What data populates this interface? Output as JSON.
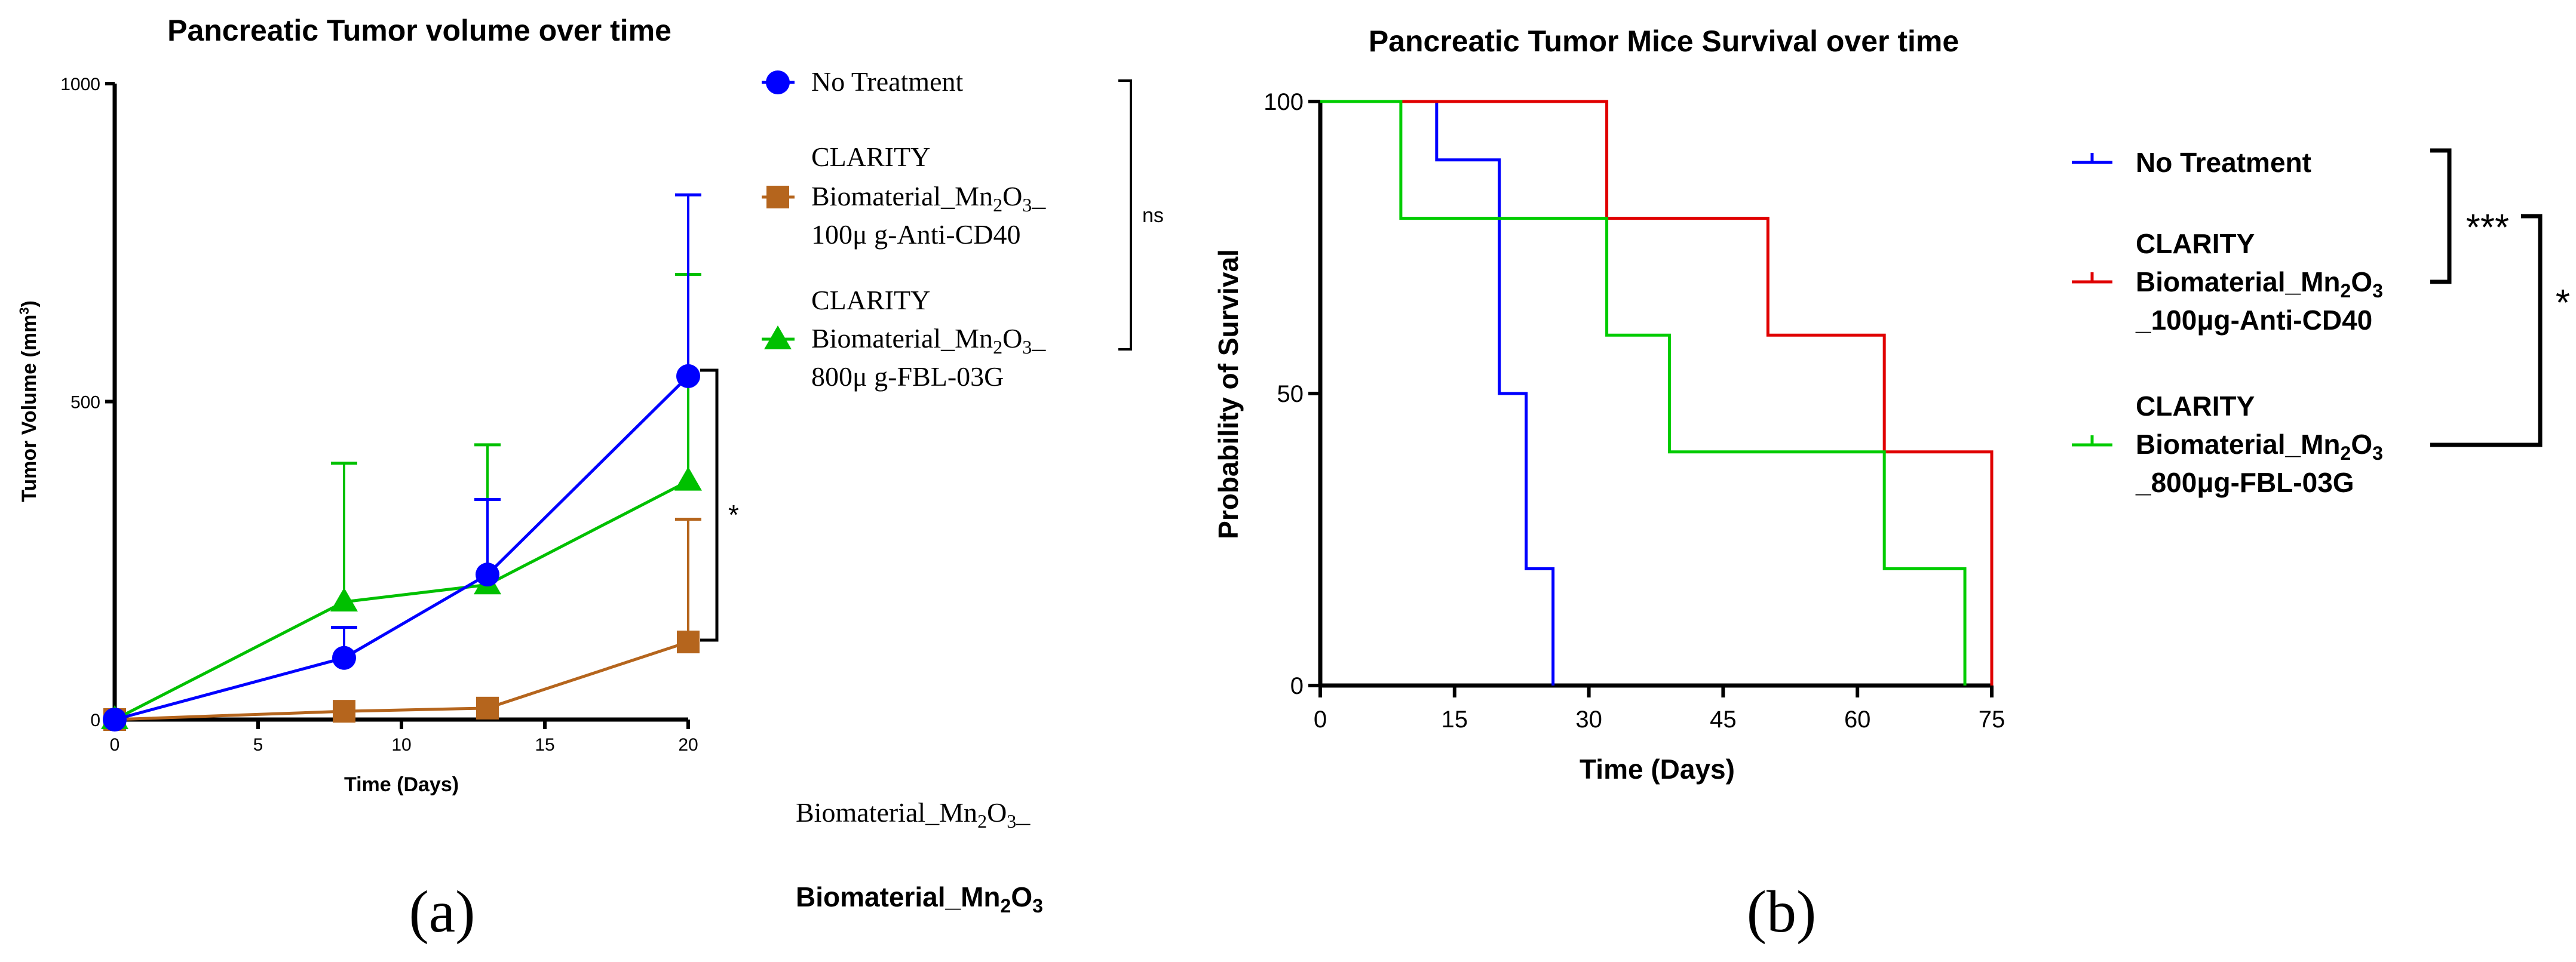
{
  "panels": {
    "a": {
      "label": "(a)"
    },
    "b": {
      "label": "(b)"
    }
  },
  "stray_text": {
    "line1_prefix": "Biomaterial_Mn",
    "line1_sub": "2",
    "line1_mid": "O",
    "line1_sub2": "3",
    "line1_suffix": "_",
    "line2_prefix": "Biomaterial_Mn",
    "line2_sub": "2",
    "line2_mid": "O",
    "line2_sub2": "3"
  },
  "chart_data": [
    {
      "id": "tumor_volume",
      "type": "line",
      "title": "Pancreatic Tumor volume over time",
      "xlabel": "Time (Days)",
      "ylabel_main": "Tumor Volume (mm",
      "ylabel_sup": "3",
      "ylabel_end": ")",
      "xlim": [
        0,
        20
      ],
      "ylim": [
        0,
        1000
      ],
      "xticks": [
        0,
        5,
        10,
        15,
        20
      ],
      "yticks": [
        0,
        500,
        1000
      ],
      "x": [
        0,
        8,
        13,
        20
      ],
      "series": [
        {
          "key": "nt",
          "name": "No Treatment",
          "color": "#0000ff",
          "marker": "circle",
          "values": [
            0,
            97,
            228,
            540
          ],
          "err": [
            0,
            48,
            118,
            285
          ]
        },
        {
          "key": "cd40",
          "name_l1": "CLARITY",
          "name_l2": "Biomaterial_Mn",
          "name_sub1": "2",
          "name_mid": "O",
          "name_sub2": "3",
          "name_end": "_",
          "name_l3": "100μ g-Anti-CD40",
          "color": "#b5651d",
          "marker": "square",
          "values": [
            0,
            13,
            18,
            122
          ],
          "err": [
            0,
            0,
            0,
            193
          ]
        },
        {
          "key": "fbl",
          "name_l1": "CLARITY",
          "name_l2": "Biomaterial_Mn",
          "name_sub1": "2",
          "name_mid": "O",
          "name_sub2": "3",
          "name_end": "_",
          "name_l3": "800μ g-FBL-03G",
          "color": "#00c000",
          "marker": "triangle",
          "values": [
            0,
            185,
            212,
            375
          ],
          "err": [
            0,
            218,
            220,
            325
          ]
        }
      ],
      "annotations": {
        "ns": "ns",
        "star": "*"
      },
      "grid": false,
      "legend_position": "right"
    },
    {
      "id": "survival",
      "type": "line",
      "step": true,
      "title": "Pancreatic Tumor Mice Survival over time",
      "xlabel": "Time (Days)",
      "ylabel": "Probability of Survival",
      "xlim": [
        0,
        75
      ],
      "ylim": [
        0,
        100
      ],
      "xticks": [
        0,
        15,
        30,
        45,
        60,
        75
      ],
      "yticks": [
        0,
        50,
        100
      ],
      "series": [
        {
          "key": "nt",
          "name": "No Treatment",
          "color": "#0000ff",
          "steps": [
            [
              0,
              100
            ],
            [
              13,
              90
            ],
            [
              20,
              50
            ],
            [
              23,
              20
            ],
            [
              26,
              0
            ]
          ],
          "end": 26
        },
        {
          "key": "cd40",
          "name_l1": "CLARITY",
          "name_l2": "Biomaterial_Mn",
          "name_sub1": "2",
          "name_mid": "O",
          "name_sub2": "3",
          "name_l3": "_100μg-Anti-CD40",
          "color": "#e00000",
          "steps": [
            [
              0,
              100
            ],
            [
              32,
              80
            ],
            [
              50,
              60
            ],
            [
              63,
              40
            ],
            [
              75,
              0
            ]
          ],
          "end": 75
        },
        {
          "key": "fbl",
          "name_l1": "CLARITY",
          "name_l2": "Biomaterial_Mn",
          "name_sub1": "2",
          "name_mid": "O",
          "name_sub2": "3",
          "name_l3": "_800μg-FBL-03G",
          "color": "#00cc00",
          "steps": [
            [
              0,
              100
            ],
            [
              9,
              80
            ],
            [
              32,
              60
            ],
            [
              39,
              40
            ],
            [
              63,
              20
            ],
            [
              72,
              0
            ]
          ],
          "end": 72
        }
      ],
      "annotations": {
        "triple": "***",
        "single": "*"
      },
      "grid": false,
      "legend_position": "right"
    }
  ]
}
